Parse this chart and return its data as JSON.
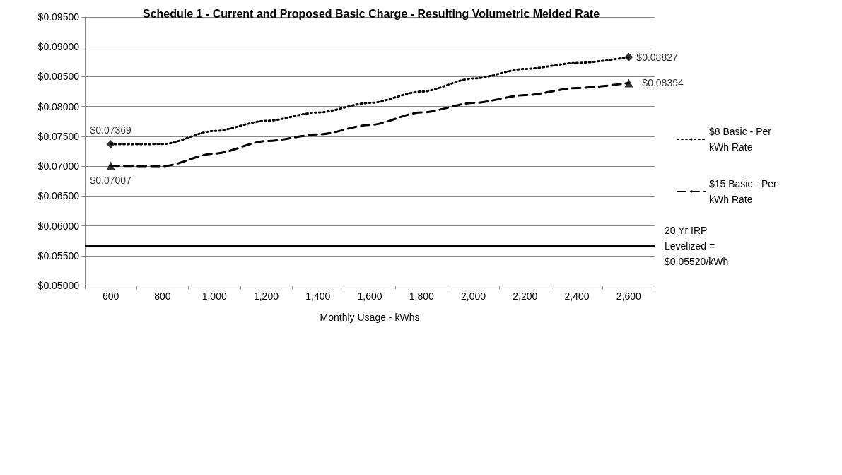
{
  "chart_data": {
    "type": "line",
    "title": "Schedule 1 - Current and Proposed Basic Charge - Resulting Volumetric Melded Rate",
    "xlabel": "Monthly Usage - kWhs",
    "categories": [
      "600",
      "800",
      "1,000",
      "1,200",
      "1,400",
      "1,600",
      "1,800",
      "2,000",
      "2,200",
      "2,400",
      "2,600"
    ],
    "series": [
      {
        "name": "$8 Basic - Per kWh Rate",
        "color": "#000000",
        "line_style": "dotted",
        "values": [
          0.07369,
          0.0737,
          0.0759,
          0.0776,
          0.079,
          0.0806,
          0.0825,
          0.0847,
          0.0863,
          0.0873,
          0.08827
        ]
      },
      {
        "name": "$15 Basic - Per kWh Rate",
        "color": "#000000",
        "line_style": "dashed",
        "values": [
          0.07007,
          0.07,
          0.0721,
          0.0742,
          0.0753,
          0.0769,
          0.079,
          0.0806,
          0.0819,
          0.0831,
          0.08394
        ]
      },
      {
        "type": "scatter",
        "color": "#000000",
        "marker": "diamond",
        "x": [
          "600",
          "2,600"
        ],
        "values": [
          0.07369,
          0.08827
        ],
        "value_labels": [
          "$0.07369",
          "$0.08827"
        ]
      },
      {
        "type": "scatter",
        "color": "#000000",
        "marker": "triangle",
        "x": [
          "600",
          "2,600"
        ],
        "values": [
          0.07007,
          0.08394
        ],
        "value_labels": [
          "$0.07007",
          "$0.08394"
        ]
      }
    ],
    "ref_lines": [
      {
        "axis": "y",
        "value": 0.0566,
        "color": "#000000",
        "line_style": "solid"
      }
    ],
    "annotations": [
      "20 Yr IRP Levelized = $0.05520/kWh"
    ],
    "ylim": [
      0.05,
      0.095
    ],
    "yticks": [
      {
        "value": 0.05,
        "label": "$0.05000"
      },
      {
        "value": 0.055,
        "label": "$0.05500"
      },
      {
        "value": 0.06,
        "label": "$0.06000"
      },
      {
        "value": 0.065,
        "label": "$0.06500"
      },
      {
        "value": 0.07,
        "label": "$0.07000"
      },
      {
        "value": 0.075,
        "label": "$0.07500"
      },
      {
        "value": 0.08,
        "label": "$0.08000"
      },
      {
        "value": 0.085,
        "label": "$0.08500"
      },
      {
        "value": 0.09,
        "label": "$0.09000"
      },
      {
        "value": 0.095,
        "label": "$0.09500"
      }
    ],
    "grid": "y",
    "legend": "right"
  }
}
